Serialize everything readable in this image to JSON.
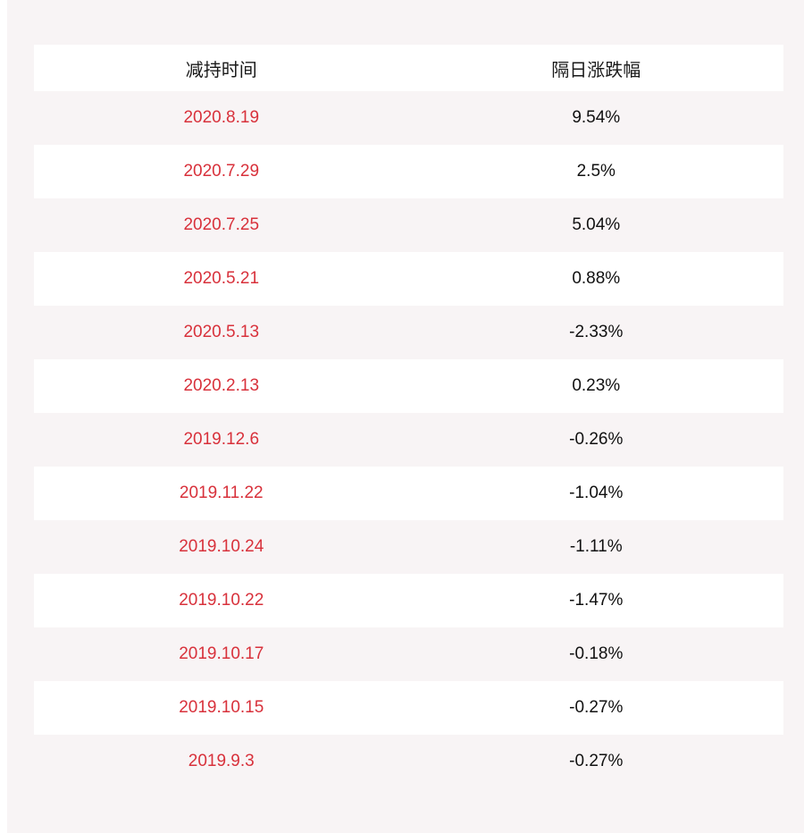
{
  "table": {
    "headers": [
      "减持时间",
      "隔日涨跌幅"
    ],
    "rows": [
      {
        "date": "2020.8.19",
        "change": "9.54%"
      },
      {
        "date": "2020.7.29",
        "change": "2.5%"
      },
      {
        "date": "2020.7.25",
        "change": "5.04%"
      },
      {
        "date": "2020.5.21",
        "change": "0.88%"
      },
      {
        "date": "2020.5.13",
        "change": "-2.33%"
      },
      {
        "date": "2020.2.13",
        "change": "0.23%"
      },
      {
        "date": "2019.12.6",
        "change": "-0.26%"
      },
      {
        "date": "2019.11.22",
        "change": "-1.04%"
      },
      {
        "date": "2019.10.24",
        "change": "-1.11%"
      },
      {
        "date": "2019.10.22",
        "change": "-1.47%"
      },
      {
        "date": "2019.10.17",
        "change": "-0.18%"
      },
      {
        "date": "2019.10.15",
        "change": "-0.27%"
      },
      {
        "date": "2019.9.3",
        "change": "-0.27%"
      }
    ]
  },
  "colors": {
    "date_text": "#d8313b",
    "panel_bg": "#f8f4f5",
    "row_alt_bg": "#ffffff"
  }
}
